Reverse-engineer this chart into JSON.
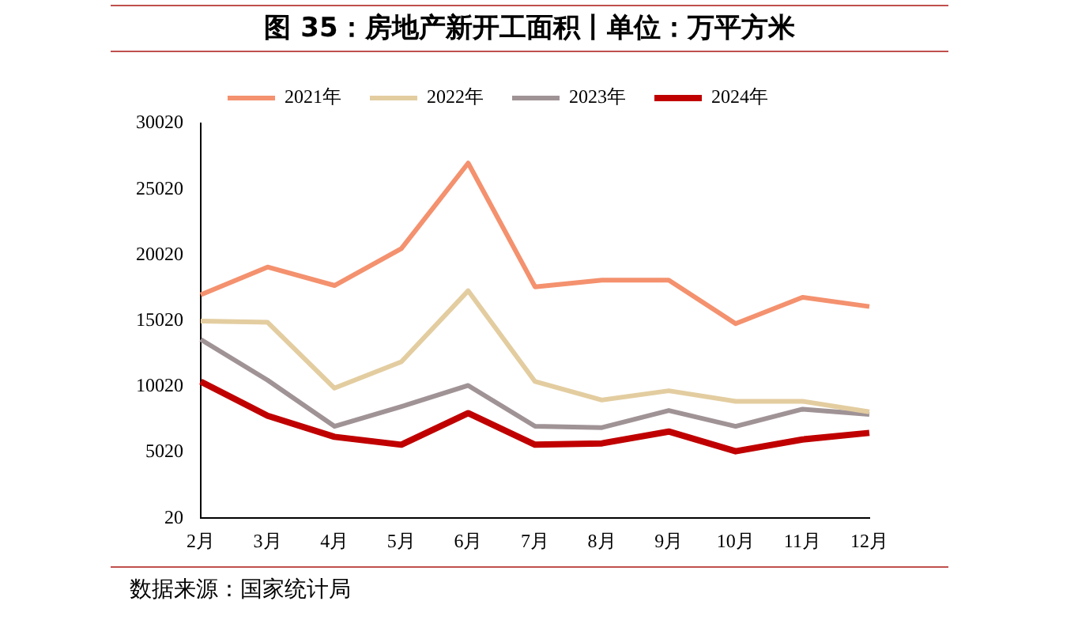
{
  "chart_data": {
    "type": "line",
    "title": "图 35：房地产新开工面积丨单位：万平方米",
    "categories": [
      "2月",
      "3月",
      "4月",
      "5月",
      "6月",
      "7月",
      "8月",
      "9月",
      "10月",
      "11月",
      "12月"
    ],
    "series": [
      {
        "name": "2021年",
        "color": "#f4916e",
        "values": [
          17000,
          19100,
          17700,
          20500,
          27000,
          17600,
          18100,
          18100,
          14800,
          16800,
          16100
        ]
      },
      {
        "name": "2022年",
        "color": "#e3cda0",
        "values": [
          15000,
          14900,
          9900,
          11900,
          17300,
          10400,
          9000,
          9700,
          8900,
          8900,
          8100
        ]
      },
      {
        "name": "2023年",
        "color": "#a09396",
        "values": [
          13600,
          10500,
          7000,
          8500,
          10100,
          7000,
          6900,
          8200,
          7000,
          8300,
          7900
        ]
      },
      {
        "name": "2024年",
        "color": "#c00000",
        "values": [
          10400,
          7800,
          6200,
          5600,
          8000,
          5600,
          5700,
          6600,
          5100,
          6000,
          6500
        ]
      }
    ],
    "ylim": [
      20,
      30020
    ],
    "yticks": [
      20,
      5020,
      10020,
      15020,
      20020,
      25020,
      30020
    ],
    "grid": false,
    "legend": "top",
    "marker": "none",
    "line_style": "solid",
    "annotations": [
      "数据来源：国家统计局"
    ]
  }
}
